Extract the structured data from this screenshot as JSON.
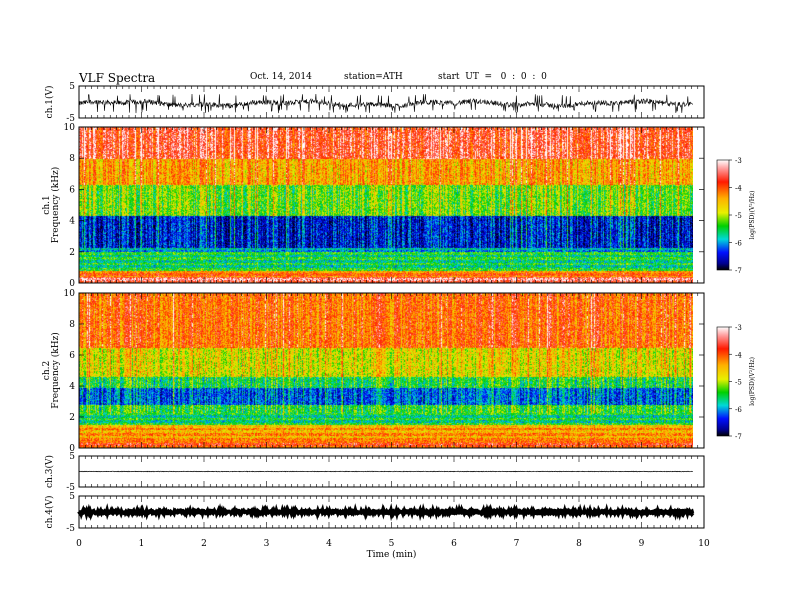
{
  "header": {
    "title": "VLF  Spectra",
    "date": "Oct. 14, 2014",
    "station": "station=ATH",
    "start": "start  UT  =   0  :  0  :  0"
  },
  "colorbar": {
    "label": "log(PSD)(V²/Hz)",
    "ticks": [
      "-3",
      "-4",
      "-5",
      "-6",
      "-7"
    ]
  },
  "chart_data": [
    {
      "type": "line",
      "panel": "ch1-waveform",
      "ylabel": "ch.1(V)",
      "yticks": [
        "5",
        "-5"
      ],
      "ylim": [
        -5,
        5
      ],
      "xlim": [
        0,
        10
      ],
      "data_end_min": 9.82,
      "baseline": -0.5,
      "amplitude_range": [
        -3.5,
        2.5
      ]
    },
    {
      "type": "heatmap",
      "panel": "ch1-spectrogram",
      "label_top": "ch.1",
      "ylabel": "Frequency  (kHz)",
      "yticks": [
        "10",
        "8",
        "6",
        "4",
        "2",
        "0"
      ],
      "ylim": [
        0,
        10
      ],
      "xlim": [
        0,
        10
      ],
      "data_end_min": 9.82,
      "color_range": [
        -7,
        -3
      ],
      "bands": [
        {
          "from_khz": 0,
          "to_khz": 0.4,
          "level": -3.2
        },
        {
          "from_khz": 0.4,
          "to_khz": 0.8,
          "level": -3.8
        },
        {
          "from_khz": 0.8,
          "to_khz": 2.0,
          "level": -5.2
        },
        {
          "from_khz": 2.0,
          "to_khz": 2.3,
          "level": -5.6
        },
        {
          "from_khz": 2.3,
          "to_khz": 4.3,
          "level": -6.3
        },
        {
          "from_khz": 4.3,
          "to_khz": 6.3,
          "level": -5.0
        },
        {
          "from_khz": 6.3,
          "to_khz": 8.0,
          "level": -4.2
        },
        {
          "from_khz": 8.0,
          "to_khz": 10.0,
          "level": -3.5
        }
      ]
    },
    {
      "type": "heatmap",
      "panel": "ch2-spectrogram",
      "label_top": "ch.2",
      "ylabel": "Frequency  (kHz)",
      "yticks": [
        "10",
        "8",
        "6",
        "4",
        "2",
        "0"
      ],
      "ylim": [
        0,
        10
      ],
      "xlim": [
        0,
        10
      ],
      "data_end_min": 9.82,
      "color_range": [
        -7,
        -3
      ],
      "bands": [
        {
          "from_khz": 0,
          "to_khz": 0.5,
          "level": -3.6
        },
        {
          "from_khz": 0.5,
          "to_khz": 1.5,
          "level": -4.0
        },
        {
          "from_khz": 1.5,
          "to_khz": 2.8,
          "level": -5.2
        },
        {
          "from_khz": 2.8,
          "to_khz": 3.9,
          "level": -6.0
        },
        {
          "from_khz": 3.9,
          "to_khz": 4.6,
          "level": -5.3
        },
        {
          "from_khz": 4.6,
          "to_khz": 6.5,
          "level": -4.6
        },
        {
          "from_khz": 6.5,
          "to_khz": 10.0,
          "level": -3.9
        }
      ]
    },
    {
      "type": "line",
      "panel": "ch3-waveform",
      "ylabel": "ch.3(V)",
      "yticks": [
        "5",
        "-5"
      ],
      "ylim": [
        -5,
        5
      ],
      "xlim": [
        0,
        10
      ],
      "data_end_min": 9.82,
      "baseline": 0,
      "amplitude_range": [
        -0.1,
        0.1
      ]
    },
    {
      "type": "line",
      "panel": "ch4-waveform",
      "ylabel": "ch.4(V)",
      "yticks": [
        "5",
        "-5"
      ],
      "ylim": [
        -5,
        5
      ],
      "xlim": [
        0,
        10
      ],
      "data_end_min": 9.82,
      "baseline": 0,
      "amplitude_range": [
        -0.4,
        0.4
      ],
      "xlabel": "Time  (min)",
      "xticks": [
        "0",
        "1",
        "2",
        "3",
        "4",
        "5",
        "6",
        "7",
        "8",
        "9",
        "10"
      ]
    }
  ]
}
